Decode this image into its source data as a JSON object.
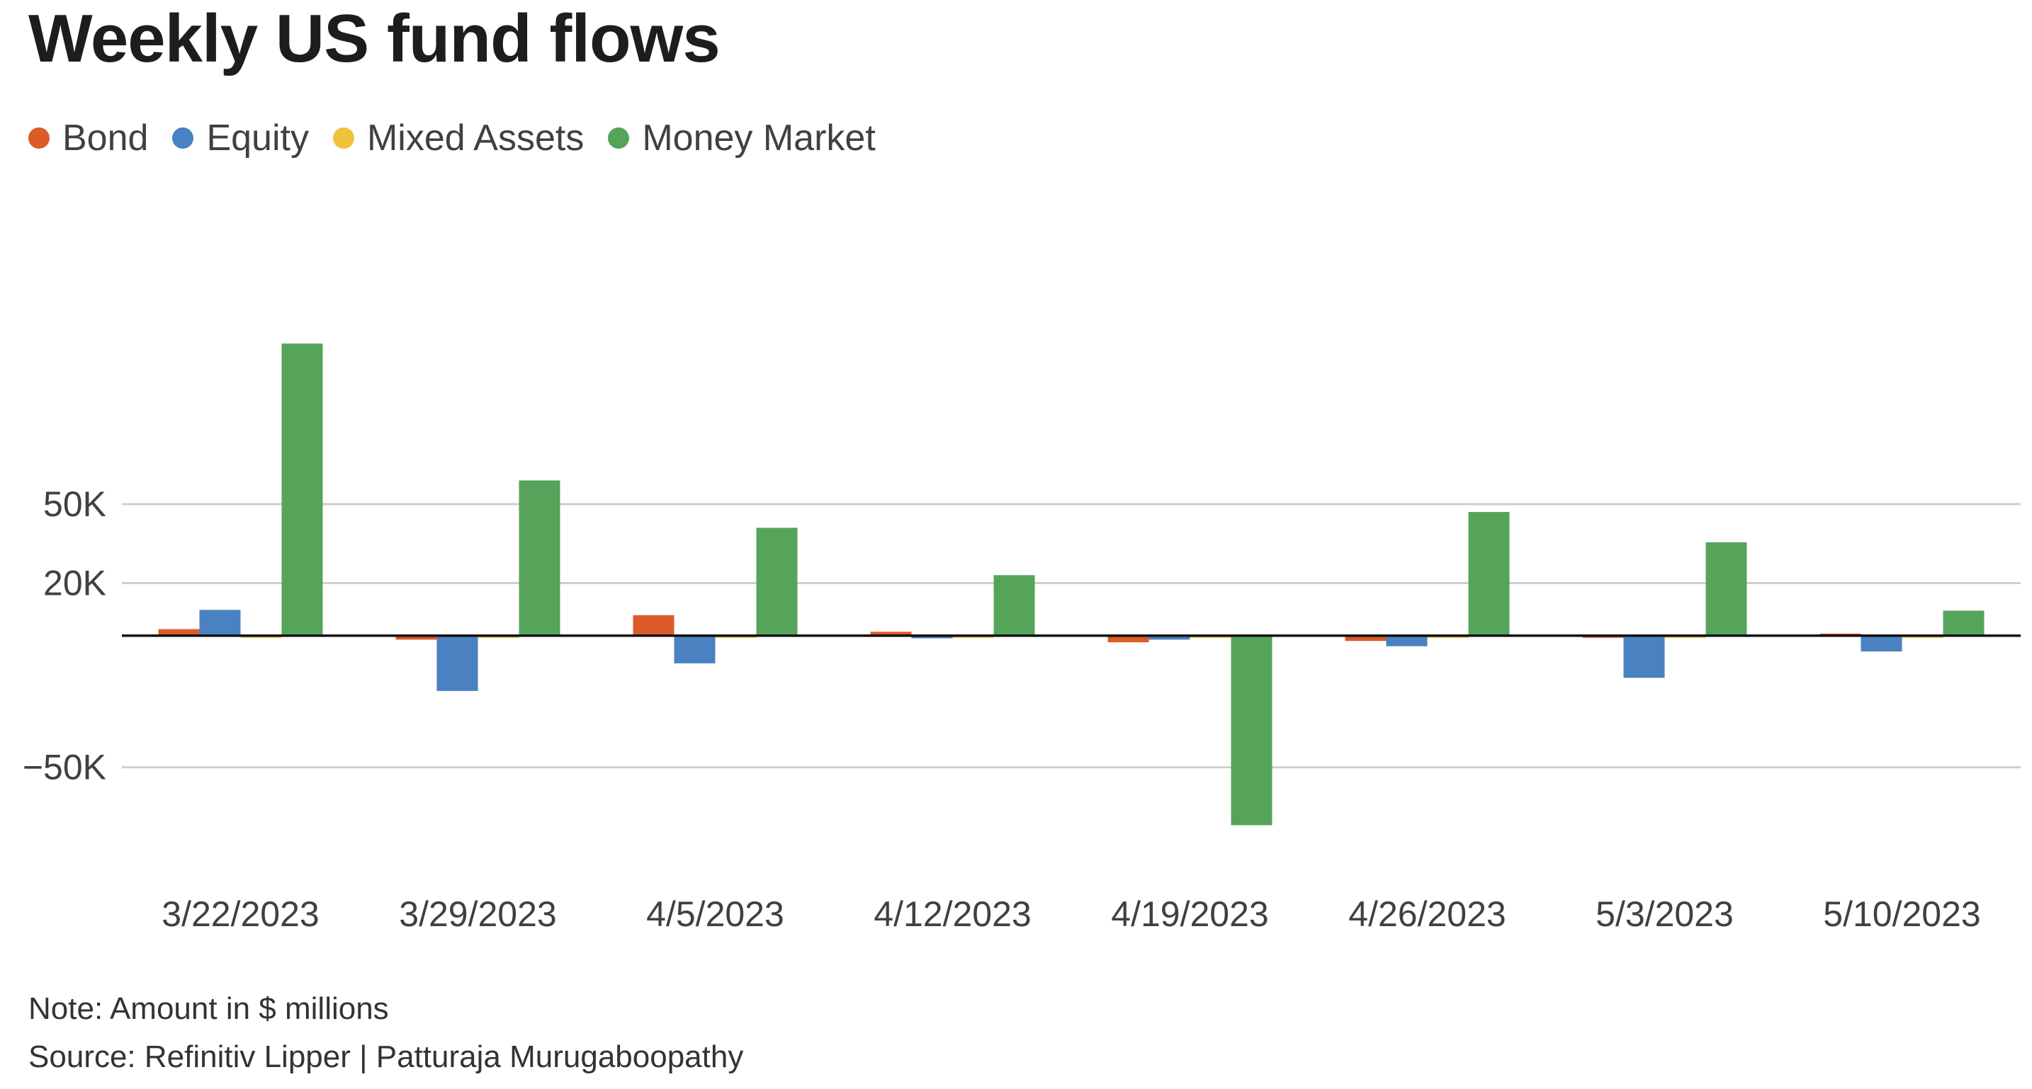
{
  "chart_data": {
    "type": "bar",
    "title": "Weekly US fund flows",
    "xlabel": "",
    "ylabel": "",
    "categories": [
      "3/22/2023",
      "3/29/2023",
      "4/5/2023",
      "4/12/2023",
      "4/19/2023",
      "4/26/2023",
      "5/3/2023",
      "5/10/2023"
    ],
    "series": [
      {
        "name": "Bond",
        "color": "#dc5b28",
        "values": [
          2500,
          -1500,
          7800,
          1500,
          -2500,
          -2000,
          -500,
          0
        ]
      },
      {
        "name": "Equity",
        "color": "#4a81c0",
        "values": [
          9800,
          -21000,
          -10500,
          -1000,
          -1500,
          -4000,
          -16000,
          -6000
        ]
      },
      {
        "name": "Mixed Assets",
        "color": "#f0c33c",
        "values": [
          -800,
          -700,
          -500,
          -600,
          -700,
          -500,
          -600,
          -500
        ]
      },
      {
        "name": "Money Market",
        "color": "#56a45a",
        "values": [
          111000,
          59000,
          41000,
          23000,
          -72000,
          47000,
          35500,
          9500
        ]
      }
    ],
    "yticks": [
      {
        "value": 50000,
        "label": "50K"
      },
      {
        "value": 20000,
        "label": "20K"
      },
      {
        "value": -50000,
        "label": "−50K"
      }
    ],
    "ylim": [
      -84000,
      142000
    ],
    "grid": true,
    "legend_position": "top-left"
  },
  "notes": {
    "note": "Note: Amount in $ millions",
    "source": "Source: Refinitiv Lipper | Patturaja Murugaboopathy"
  }
}
